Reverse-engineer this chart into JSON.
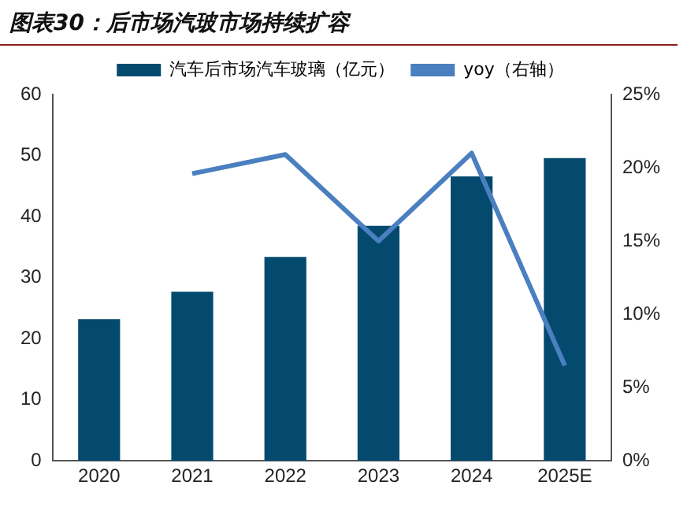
{
  "chart_data": {
    "type": "bar",
    "title": "图表30：后市场汽玻市场持续扩容",
    "categories": [
      "2020",
      "2021",
      "2022",
      "2023",
      "2024",
      "2025E"
    ],
    "series": [
      {
        "name": "汽车后市场汽车玻璃（亿元）",
        "color": "#044a6e",
        "values": [
          23.2,
          27.7,
          33.4,
          38.5,
          46.6,
          49.6
        ]
      },
      {
        "name": "yoy（右轴）",
        "type": "line",
        "axis": "y2",
        "color": "#4a7fc0",
        "values": [
          null,
          19.6,
          20.9,
          15.0,
          21.0,
          6.5
        ]
      }
    ],
    "ylim": [
      0,
      60
    ],
    "yticks": [
      0,
      10,
      20,
      30,
      40,
      50,
      60
    ],
    "y2lim": [
      0,
      25
    ],
    "y2ticks": [
      {
        "value": 0,
        "label": "0%"
      },
      {
        "value": 5,
        "label": "5%"
      },
      {
        "value": 10,
        "label": "10%"
      },
      {
        "value": 15,
        "label": "15%"
      },
      {
        "value": 20,
        "label": "20%"
      },
      {
        "value": 25,
        "label": "25%"
      }
    ],
    "legend": "top",
    "grid": false,
    "marker": "none"
  }
}
